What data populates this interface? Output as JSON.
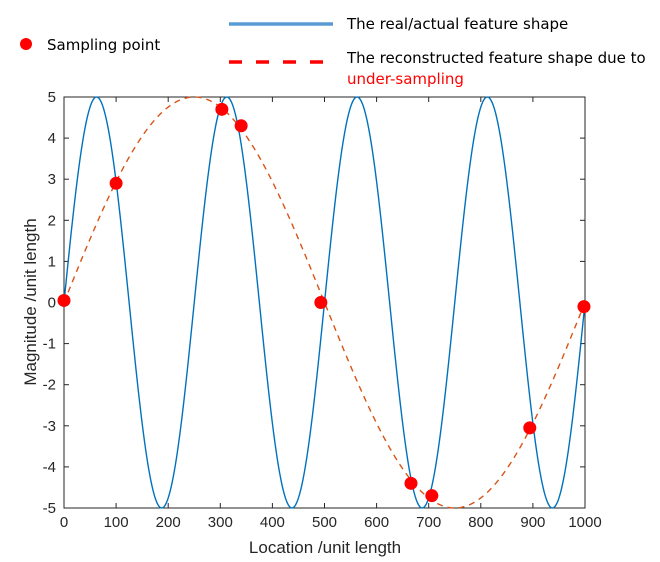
{
  "legend": {
    "sampling_point": "Sampling point",
    "real_shape": "The real/actual feature shape",
    "reconstructed_line1": "The reconstructed feature shape due to",
    "reconstructed_line2": "under-sampling"
  },
  "colors": {
    "real_curve": "#0072BD",
    "real_legend": "#5B9BD5",
    "reconstructed_curve": "#D95319",
    "reconstructed_legend": "#FF0000",
    "sampling_point": "#FF0000",
    "axis": "#262626"
  },
  "chart_data": {
    "type": "line",
    "title": "",
    "xlabel": "Location /unit length",
    "ylabel": "Magnitude /unit length",
    "xlim": [
      0,
      1000
    ],
    "ylim": [
      -5,
      5
    ],
    "xticks": [
      0,
      100,
      200,
      300,
      400,
      500,
      600,
      700,
      800,
      900,
      1000
    ],
    "yticks": [
      -5,
      -4,
      -3,
      -2,
      -1,
      0,
      1,
      2,
      3,
      4,
      5
    ],
    "grid": false,
    "legend_position": "top (outside plot)",
    "series": [
      {
        "name": "The real/actual feature shape",
        "style": "solid",
        "function": "5*sin(2*pi*x/250)",
        "amplitude": 5,
        "period": 250,
        "peaks_x": [
          62.5,
          312.5,
          562.5,
          812.5
        ],
        "troughs_x": [
          187.5,
          437.5,
          687.5,
          937.5
        ]
      },
      {
        "name": "The reconstructed feature shape due to under-sampling",
        "style": "dashed",
        "function": "5*sin(2*pi*x/1000)",
        "amplitude": 5,
        "period": 1000,
        "peaks_x": [
          250
        ],
        "troughs_x": [
          750
        ]
      },
      {
        "name": "Sampling point",
        "style": "markers",
        "x": [
          0,
          100,
          303,
          340,
          493,
          666,
          706,
          894,
          998
        ],
        "y": [
          0.05,
          2.9,
          4.7,
          4.3,
          0.0,
          -4.4,
          -4.7,
          -3.05,
          -0.1
        ]
      }
    ]
  }
}
